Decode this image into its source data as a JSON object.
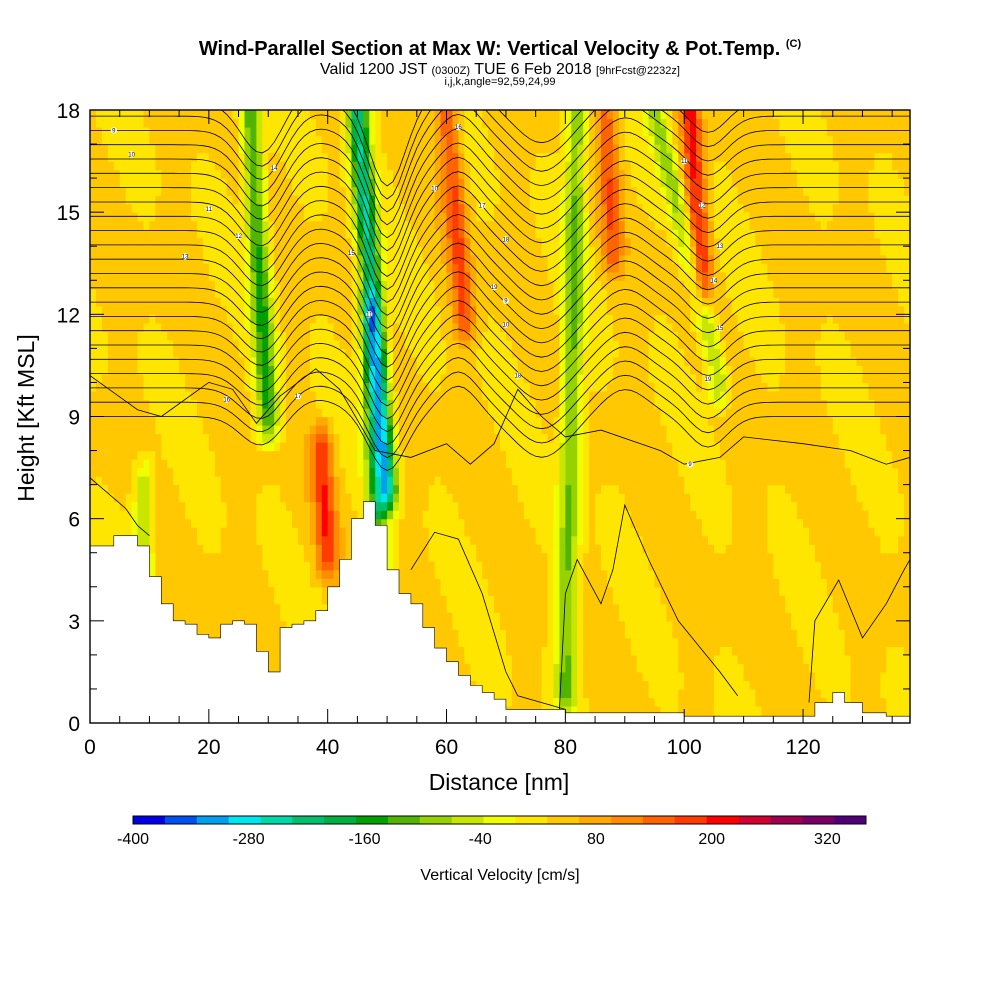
{
  "chart_data": {
    "type": "heatmap",
    "title": "Wind-Parallel Section at Max W: Vertical Velocity & Pot.Temp.",
    "title_mark": "(C)",
    "subtitle_main": "Valid 1200 JST",
    "subtitle_utc": "(0300Z)",
    "subtitle_date": "TUE 6 Feb 2018",
    "subtitle_fcst": "[9hrFcst@2232z]",
    "subtitle2": "i,j,k,angle=92,59,24,99",
    "xlabel": "Distance [nm]",
    "ylabel": "Height [Kft MSL]",
    "xlim": [
      0,
      138
    ],
    "ylim": [
      0,
      18
    ],
    "xticks": [
      0,
      20,
      40,
      60,
      80,
      100,
      120
    ],
    "yticks": [
      0,
      3,
      6,
      9,
      12,
      15,
      18
    ],
    "colorbar": {
      "title": "Vertical Velocity [cm/s]",
      "ticks": [
        -400,
        -280,
        -160,
        -40,
        80,
        200,
        320
      ],
      "range": [
        -400,
        360
      ],
      "colors": [
        "#0000e6",
        "#0050f0",
        "#00a0f0",
        "#00e6f0",
        "#00d8a8",
        "#00c070",
        "#00b040",
        "#00a000",
        "#50b400",
        "#96d200",
        "#c8e600",
        "#f0ff00",
        "#ffe600",
        "#ffc800",
        "#ffaa00",
        "#ff8c00",
        "#ff6400",
        "#ff3c00",
        "#ff0000",
        "#d20032",
        "#a00050",
        "#780064",
        "#500078"
      ]
    },
    "terrain_kft": [
      [
        0,
        5.2
      ],
      [
        2,
        5.2
      ],
      [
        4,
        5.5
      ],
      [
        6,
        5.5
      ],
      [
        8,
        5.2
      ],
      [
        10,
        4.3
      ],
      [
        12,
        3.5
      ],
      [
        14,
        3.0
      ],
      [
        16,
        2.9
      ],
      [
        18,
        2.6
      ],
      [
        20,
        2.5
      ],
      [
        22,
        2.9
      ],
      [
        24,
        3.0
      ],
      [
        26,
        2.9
      ],
      [
        28,
        2.1
      ],
      [
        30,
        1.5
      ],
      [
        32,
        2.8
      ],
      [
        34,
        2.9
      ],
      [
        36,
        3.0
      ],
      [
        38,
        3.3
      ],
      [
        40,
        4.0
      ],
      [
        42,
        4.8
      ],
      [
        44,
        6.0
      ],
      [
        46,
        6.5
      ],
      [
        48,
        5.8
      ],
      [
        50,
        4.5
      ],
      [
        52,
        3.8
      ],
      [
        54,
        3.5
      ],
      [
        56,
        2.8
      ],
      [
        58,
        2.2
      ],
      [
        60,
        1.8
      ],
      [
        62,
        1.4
      ],
      [
        64,
        1.1
      ],
      [
        66,
        0.9
      ],
      [
        68,
        0.7
      ],
      [
        70,
        0.4
      ],
      [
        80,
        0.3
      ],
      [
        100,
        0.2
      ],
      [
        118,
        0.2
      ],
      [
        122,
        0.6
      ],
      [
        125,
        0.9
      ],
      [
        127,
        0.6
      ],
      [
        130,
        0.3
      ],
      [
        134,
        0.2
      ],
      [
        138,
        0.3
      ]
    ],
    "updraft_cores": [
      {
        "x_top": 27,
        "x_bottom": 30,
        "z_top": 18,
        "z_bottom": 9,
        "w": -180
      },
      {
        "x_top": 45,
        "x_bottom": 50,
        "z_top": 18,
        "z_bottom": 7,
        "w": -270
      },
      {
        "x_top": 47,
        "x_bottom": 49,
        "z_top": 12,
        "z_bottom": 4,
        "w": -150
      },
      {
        "x_top": 82,
        "x_bottom": 80,
        "z_top": 18,
        "z_bottom": 1,
        "w": -140
      },
      {
        "x_top": 95,
        "x_bottom": 106,
        "z_top": 18,
        "z_bottom": 10,
        "w": -120
      },
      {
        "x_top": 9,
        "x_bottom": 9,
        "z_top": 7,
        "z_bottom": 3,
        "w": -110
      }
    ],
    "downdraft_cores": [
      {
        "x_top": 60,
        "x_bottom": 63,
        "z_top": 18,
        "z_bottom": 12,
        "w": 130
      },
      {
        "x_top": 101,
        "x_bottom": 103,
        "z_top": 18,
        "z_bottom": 13,
        "w": 170
      },
      {
        "x_top": 39,
        "x_bottom": 40,
        "z_top": 8,
        "z_bottom": 5,
        "w": 140
      },
      {
        "x_top": 87,
        "x_bottom": 88,
        "z_top": 18,
        "z_bottom": 14,
        "w": 110
      }
    ],
    "theta_contour_labels": [
      "9",
      "10",
      "11",
      "12",
      "13",
      "14",
      "15",
      "16",
      "17",
      "18",
      "19"
    ]
  }
}
